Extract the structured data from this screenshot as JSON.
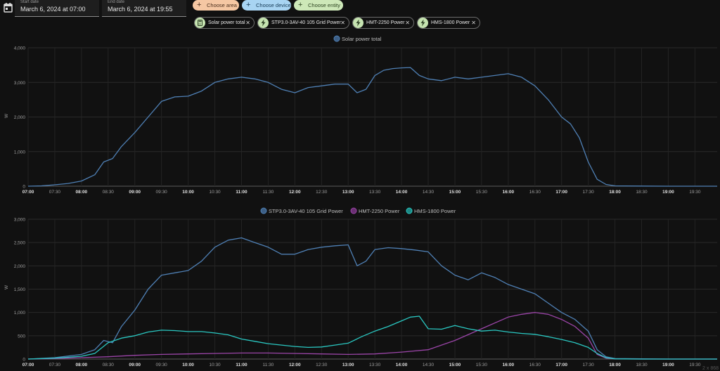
{
  "date_range": {
    "start_label": "Start date",
    "start_value": "March 6, 2024 at 07:00",
    "end_label": "End date",
    "end_value": "March 6, 2024 at 19:55"
  },
  "pickers": {
    "area": "Choose area",
    "device": "Choose device",
    "entity": "Choose entity"
  },
  "chips": [
    {
      "label": "Solar power total",
      "icon": "calculator-icon"
    },
    {
      "label": "STP3.0-3AV-40 105 Grid Power",
      "icon": "flash-icon"
    },
    {
      "label": "HMT-2250 Power",
      "icon": "flash-icon"
    },
    {
      "label": "HMS-1800 Power",
      "icon": "flash-icon"
    }
  ],
  "colors": {
    "blue": "#4f80b5",
    "purple": "#9b45a8",
    "cyan": "#2ac8c2",
    "area_picker": "#f5c7a3",
    "device_picker": "#a8d4f2",
    "entity_picker": "#cde8b8"
  },
  "footer_partial": "2 x 868",
  "chart_data": [
    {
      "type": "line",
      "ylabel": "W",
      "ylim": [
        0,
        4000
      ],
      "yticks": [
        "4,000",
        "3,000",
        "2,000",
        "1,000",
        "0"
      ],
      "xticks": [
        "07:00",
        "07:30",
        "08:00",
        "08:30",
        "09:00",
        "09:30",
        "10:00",
        "10:30",
        "11:00",
        "11:30",
        "12:00",
        "12:30",
        "13:00",
        "13:30",
        "14:00",
        "14:30",
        "15:00",
        "15:30",
        "16:00",
        "16:30",
        "17:00",
        "17:30",
        "18:00",
        "18:30",
        "19:00",
        "19:30"
      ],
      "legend_position": "top-center",
      "grid": true,
      "series": [
        {
          "name": "Solar power total",
          "color": "#4f80b5",
          "x": [
            "07:00",
            "07:15",
            "07:30",
            "07:45",
            "08:00",
            "08:15",
            "08:25",
            "08:35",
            "08:45",
            "09:00",
            "09:15",
            "09:30",
            "09:45",
            "10:00",
            "10:15",
            "10:30",
            "10:45",
            "11:00",
            "11:15",
            "11:30",
            "11:45",
            "12:00",
            "12:15",
            "12:30",
            "12:45",
            "13:00",
            "13:10",
            "13:20",
            "13:30",
            "13:40",
            "13:50",
            "14:00",
            "14:10",
            "14:20",
            "14:30",
            "14:45",
            "15:00",
            "15:15",
            "15:30",
            "15:45",
            "16:00",
            "16:15",
            "16:30",
            "16:45",
            "17:00",
            "17:10",
            "17:20",
            "17:30",
            "17:40",
            "17:50",
            "18:00",
            "18:30",
            "19:00",
            "19:30",
            "19:55"
          ],
          "values": [
            0,
            10,
            40,
            80,
            150,
            330,
            700,
            800,
            1150,
            1550,
            2000,
            2450,
            2580,
            2600,
            2750,
            3000,
            3100,
            3150,
            3100,
            3000,
            2800,
            2700,
            2850,
            2900,
            2950,
            2950,
            2700,
            2800,
            3200,
            3350,
            3400,
            3420,
            3430,
            3200,
            3100,
            3050,
            3150,
            3100,
            3150,
            3200,
            3250,
            3150,
            2900,
            2500,
            2000,
            1800,
            1400,
            700,
            200,
            50,
            10,
            5,
            0,
            0,
            0
          ]
        }
      ]
    },
    {
      "type": "line",
      "ylabel": "W",
      "ylim": [
        0,
        3000
      ],
      "yticks": [
        "3,000",
        "2,500",
        "2,000",
        "1,500",
        "1,000",
        "500",
        "0"
      ],
      "xticks": [
        "07:00",
        "07:30",
        "08:00",
        "08:30",
        "09:00",
        "09:30",
        "10:00",
        "10:30",
        "11:00",
        "11:30",
        "12:00",
        "12:30",
        "13:00",
        "13:30",
        "14:00",
        "14:30",
        "15:00",
        "15:30",
        "16:00",
        "16:30",
        "17:00",
        "17:30",
        "18:00",
        "18:30",
        "19:00",
        "19:30"
      ],
      "legend_position": "top-center",
      "grid": true,
      "series": [
        {
          "name": "STP3.0-3AV-40 105 Grid Power",
          "color": "#4f80b5",
          "x": [
            "07:00",
            "07:30",
            "08:00",
            "08:15",
            "08:25",
            "08:35",
            "08:45",
            "09:00",
            "09:15",
            "09:30",
            "09:45",
            "10:00",
            "10:15",
            "10:30",
            "10:45",
            "11:00",
            "11:15",
            "11:30",
            "11:45",
            "12:00",
            "12:15",
            "12:30",
            "12:45",
            "13:00",
            "13:10",
            "13:20",
            "13:30",
            "13:45",
            "14:00",
            "14:15",
            "14:30",
            "14:45",
            "15:00",
            "15:15",
            "15:30",
            "15:45",
            "16:00",
            "16:15",
            "16:30",
            "16:45",
            "17:00",
            "17:15",
            "17:30",
            "17:40",
            "17:50",
            "18:00",
            "18:30",
            "19:00",
            "19:55"
          ],
          "values": [
            0,
            30,
            100,
            200,
            400,
            350,
            700,
            1050,
            1500,
            1800,
            1850,
            1900,
            2100,
            2400,
            2550,
            2600,
            2500,
            2400,
            2250,
            2250,
            2350,
            2400,
            2430,
            2450,
            2000,
            2100,
            2350,
            2390,
            2370,
            2340,
            2300,
            2000,
            1800,
            1700,
            1850,
            1750,
            1600,
            1500,
            1400,
            1200,
            1000,
            850,
            600,
            200,
            50,
            10,
            5,
            0,
            0
          ]
        },
        {
          "name": "HMT-2250 Power",
          "color": "#9b45a8",
          "x": [
            "07:00",
            "07:30",
            "08:00",
            "08:30",
            "09:00",
            "09:30",
            "10:00",
            "10:30",
            "11:00",
            "11:30",
            "12:00",
            "12:30",
            "13:00",
            "13:30",
            "14:00",
            "14:30",
            "15:00",
            "15:30",
            "16:00",
            "16:15",
            "16:30",
            "16:45",
            "17:00",
            "17:15",
            "17:30",
            "17:40",
            "17:50",
            "18:00",
            "18:30",
            "19:00",
            "19:55"
          ],
          "values": [
            0,
            10,
            30,
            50,
            80,
            100,
            110,
            120,
            130,
            130,
            120,
            110,
            100,
            110,
            150,
            200,
            400,
            650,
            900,
            960,
            1000,
            960,
            850,
            700,
            450,
            100,
            20,
            5,
            0,
            0,
            0
          ]
        },
        {
          "name": "HMS-1800 Power",
          "color": "#2ac8c2",
          "x": [
            "07:00",
            "07:30",
            "08:00",
            "08:15",
            "08:30",
            "08:45",
            "09:00",
            "09:15",
            "09:30",
            "09:45",
            "10:00",
            "10:15",
            "10:30",
            "10:45",
            "11:00",
            "11:15",
            "11:30",
            "11:45",
            "12:00",
            "12:15",
            "12:30",
            "12:45",
            "13:00",
            "13:15",
            "13:30",
            "13:45",
            "14:00",
            "14:10",
            "14:20",
            "14:30",
            "14:45",
            "15:00",
            "15:15",
            "15:30",
            "15:45",
            "16:00",
            "16:15",
            "16:30",
            "16:45",
            "17:00",
            "17:15",
            "17:30",
            "17:40",
            "17:50",
            "18:00",
            "18:30",
            "19:00",
            "19:55"
          ],
          "values": [
            0,
            20,
            60,
            120,
            350,
            450,
            500,
            580,
            620,
            610,
            590,
            590,
            560,
            520,
            430,
            380,
            330,
            300,
            270,
            250,
            260,
            300,
            340,
            480,
            600,
            700,
            820,
            900,
            920,
            650,
            640,
            720,
            650,
            600,
            620,
            580,
            550,
            530,
            480,
            420,
            350,
            250,
            120,
            30,
            5,
            0,
            0,
            0
          ]
        }
      ]
    }
  ]
}
